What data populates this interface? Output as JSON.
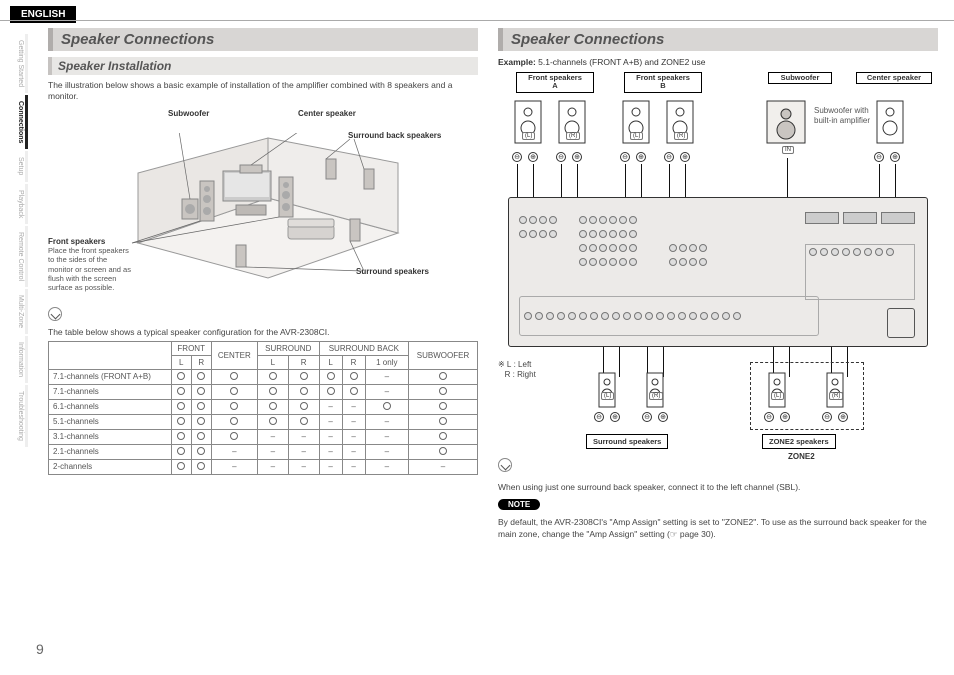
{
  "lang": "ENGLISH",
  "side_tabs": [
    "Getting Started",
    "Connections",
    "Setup",
    "Playback",
    "Remote Control",
    "Multi-Zone",
    "Information",
    "Troubleshooting"
  ],
  "active_tab_index": 1,
  "page_number": "9",
  "left": {
    "title": "Speaker Connections",
    "subtitle": "Speaker Installation",
    "intro": "The illustration below shows a basic example of installation of the amplifier combined with 8 speakers and a monitor.",
    "labels": {
      "subwoofer": "Subwoofer",
      "center": "Center speaker",
      "surround_back": "Surround back speakers",
      "surround": "Surround speakers",
      "front": "Front speakers"
    },
    "front_note": "Place the front speakers to the sides of the monitor or screen and as flush with the screen surface as possible.",
    "table_intro": "The table below shows a typical speaker configuration for the AVR-2308CI.",
    "table": {
      "top_headers": [
        "FRONT",
        "CENTER",
        "SURROUND",
        "SURROUND BACK",
        "SUBWOOFER"
      ],
      "sub_headers_front": [
        "L",
        "R"
      ],
      "sub_headers_surround": [
        "L",
        "R"
      ],
      "sub_headers_surrback": [
        "L",
        "R",
        "1 only"
      ],
      "rows": [
        {
          "name": "7.1-channels (FRONT A+B)",
          "cells": [
            "O",
            "O",
            "O",
            "O",
            "O",
            "O",
            "O",
            "-",
            "O"
          ]
        },
        {
          "name": "7.1-channels",
          "cells": [
            "O",
            "O",
            "O",
            "O",
            "O",
            "O",
            "O",
            "-",
            "O"
          ]
        },
        {
          "name": "6.1-channels",
          "cells": [
            "O",
            "O",
            "O",
            "O",
            "O",
            "-",
            "-",
            "O",
            "O"
          ]
        },
        {
          "name": "5.1-channels",
          "cells": [
            "O",
            "O",
            "O",
            "O",
            "O",
            "-",
            "-",
            "-",
            "O"
          ]
        },
        {
          "name": "3.1-channels",
          "cells": [
            "O",
            "O",
            "O",
            "-",
            "-",
            "-",
            "-",
            "-",
            "O"
          ]
        },
        {
          "name": "2.1-channels",
          "cells": [
            "O",
            "O",
            "-",
            "-",
            "-",
            "-",
            "-",
            "-",
            "O"
          ]
        },
        {
          "name": "2-channels",
          "cells": [
            "O",
            "O",
            "-",
            "-",
            "-",
            "-",
            "-",
            "-",
            "-"
          ]
        }
      ]
    }
  },
  "right": {
    "title": "Speaker Connections",
    "example_label": "Example:",
    "example_text": " 5.1-channels (FRONT A+B) and ZONE2 use",
    "top_labels": {
      "front_a": "Front speakers\nA",
      "front_b": "Front speakers\nB",
      "subwoofer": "Subwoofer",
      "center": "Center speaker"
    },
    "sub_note": "Subwoofer with built-in amplifier",
    "legend": "※ L : Left\n   R : Right",
    "bottom_labels": {
      "surround": "Surround speakers",
      "zone2_spk": "ZONE2 speakers",
      "zone2": "ZONE2"
    },
    "note_line": "When using just one surround back speaker, connect it to the left channel (SBL).",
    "note_pill": "NOTE",
    "note_body": "By default, the AVR-2308CI's \"Amp Assign\" setting is set to \"ZONE2\". To use as the surround back speaker for the main zone, change the \"Amp Assign\" setting (☞ page 30).",
    "lr_tags": {
      "L": "(L)",
      "R": "(R)",
      "IN": "IN"
    },
    "terminals": {
      "minus": "⊖",
      "plus": "⊕"
    },
    "colors": {
      "section_bg": "#d8d6d4",
      "section_bar": "#b0adab",
      "sub_bg": "#e8e7e5",
      "sub_bar": "#c6c3c1",
      "amp_bg": "#eceae8",
      "border": "#333333"
    }
  }
}
